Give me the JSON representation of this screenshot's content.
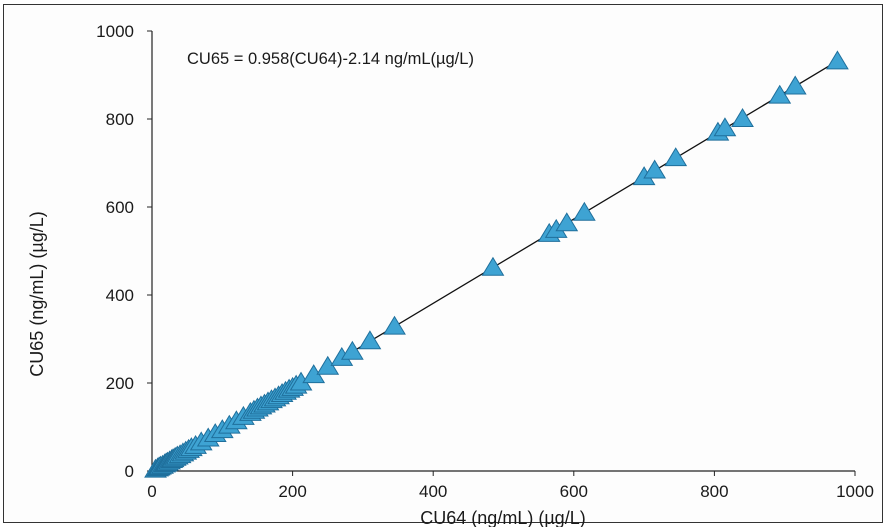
{
  "chart_data": {
    "type": "scatter",
    "equation": "CU65 = 0.958(CU64)-2.14 ng/mL(µg/L)",
    "xlabel": "CU64 (ng/mL) (µg/L)",
    "ylabel": "CU65 (ng/mL) (µg/L)",
    "xlim": [
      0,
      1000
    ],
    "ylim": [
      0,
      1000
    ],
    "xticks": [
      0,
      200,
      400,
      600,
      800,
      1000
    ],
    "yticks": [
      0,
      200,
      400,
      600,
      800,
      1000
    ],
    "grid": false,
    "marker": "triangle",
    "marker_color": "#3ea3d3",
    "fit_line": {
      "slope": 0.958,
      "intercept": -2.14,
      "x_range": [
        0,
        975
      ]
    },
    "points": [
      [
        5,
        3
      ],
      [
        8,
        6
      ],
      [
        10,
        8
      ],
      [
        12,
        10
      ],
      [
        15,
        12
      ],
      [
        18,
        15
      ],
      [
        20,
        17
      ],
      [
        22,
        19
      ],
      [
        25,
        22
      ],
      [
        28,
        25
      ],
      [
        30,
        27
      ],
      [
        33,
        30
      ],
      [
        36,
        33
      ],
      [
        40,
        36
      ],
      [
        44,
        40
      ],
      [
        48,
        44
      ],
      [
        52,
        48
      ],
      [
        56,
        52
      ],
      [
        62,
        57
      ],
      [
        70,
        65
      ],
      [
        80,
        74
      ],
      [
        90,
        84
      ],
      [
        100,
        93
      ],
      [
        110,
        103
      ],
      [
        120,
        113
      ],
      [
        130,
        123
      ],
      [
        140,
        132
      ],
      [
        145,
        137
      ],
      [
        150,
        142
      ],
      [
        155,
        147
      ],
      [
        160,
        151
      ],
      [
        165,
        156
      ],
      [
        170,
        161
      ],
      [
        175,
        165
      ],
      [
        180,
        170
      ],
      [
        185,
        175
      ],
      [
        190,
        180
      ],
      [
        195,
        185
      ],
      [
        200,
        189
      ],
      [
        205,
        194
      ],
      [
        212,
        201
      ],
      [
        230,
        218
      ],
      [
        250,
        237
      ],
      [
        270,
        257
      ],
      [
        285,
        271
      ],
      [
        310,
        295
      ],
      [
        345,
        328
      ],
      [
        485,
        462
      ],
      [
        565,
        539
      ],
      [
        575,
        548
      ],
      [
        590,
        563
      ],
      [
        615,
        587
      ],
      [
        700,
        668
      ],
      [
        715,
        683
      ],
      [
        745,
        711
      ],
      [
        805,
        769
      ],
      [
        815,
        779
      ],
      [
        840,
        800
      ],
      [
        893,
        853
      ],
      [
        915,
        874
      ],
      [
        975,
        931
      ]
    ]
  }
}
